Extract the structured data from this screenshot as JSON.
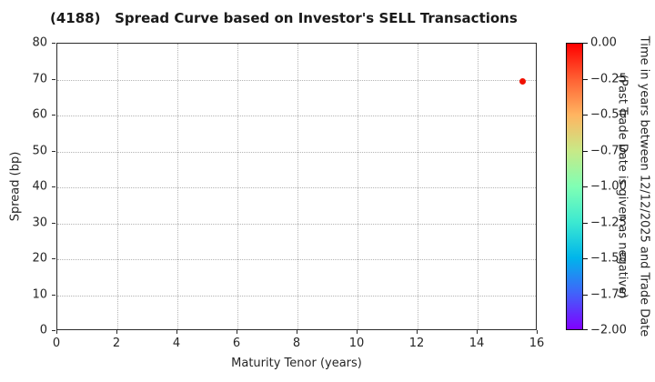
{
  "title": "(4188)   Spread Curve based on Investor's SELL Transactions",
  "colors": {
    "title_text": "#1a1a1a",
    "axis_text": "#262626",
    "spine": "#2b2b2b",
    "grid": "#b3b3b3",
    "point": "#f01000",
    "colorbar_gradient": [
      "#ff0000",
      "#ff6133",
      "#ffb561",
      "#c8e987",
      "#80ffb4",
      "#3ce9d1",
      "#00b5eb",
      "#4162fa",
      "#8000ff"
    ]
  },
  "chart_data": {
    "type": "scatter",
    "title": "(4188)   Spread Curve based on Investor's SELL Transactions",
    "xlabel": "Maturity Tenor (years)",
    "ylabel": "Spread (bp)",
    "xlim": [
      0,
      16
    ],
    "ylim": [
      0,
      80
    ],
    "xticks": [
      0,
      2,
      4,
      6,
      8,
      10,
      12,
      14,
      16
    ],
    "yticks": [
      0,
      10,
      20,
      30,
      40,
      50,
      60,
      70,
      80
    ],
    "grid": true,
    "grid_style": "dotted",
    "legend": "none",
    "points": [
      {
        "x": 15.5,
        "y": 69.4,
        "color_value": 0.0,
        "color": "#f01000"
      }
    ],
    "colorbar": {
      "position": "right",
      "label_line1": "Time in years between 12/12/2025 and Trade Date",
      "label_line2": "(Past Trade Date is given as negative)",
      "tick_labels": [
        "0.00",
        "−0.25",
        "−0.50",
        "−0.75",
        "−1.00",
        "−1.25",
        "−1.50",
        "−1.75",
        "−2.00"
      ],
      "value_range": [
        0.0,
        -2.0
      ]
    }
  }
}
